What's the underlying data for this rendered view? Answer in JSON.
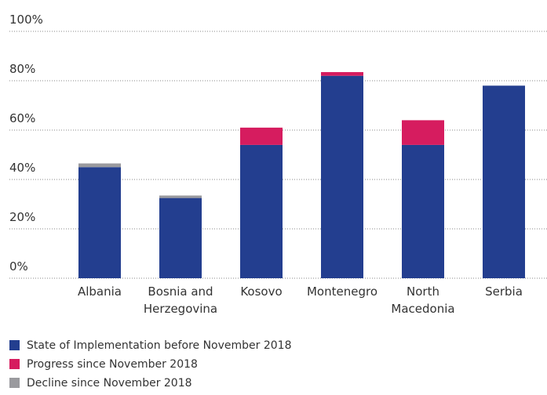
{
  "chart_data": {
    "type": "stacked_bar",
    "categories": [
      "Albania",
      "Bosnia and Herzegovina",
      "Kosovo",
      "Montenegro",
      "North Macedonia",
      "Serbia"
    ],
    "series": [
      {
        "name": "State of Implementation before November 2018",
        "color": "#233e8f",
        "values": [
          45,
          32.5,
          54,
          82,
          54,
          78
        ]
      },
      {
        "name": "Progress since November 2018",
        "color": "#d61c5f",
        "values": [
          0,
          0,
          7,
          1.5,
          10,
          0
        ]
      },
      {
        "name": "Decline since November 2018",
        "color": "#9a9a9e",
        "values": [
          1.5,
          1,
          0,
          0,
          0,
          0
        ]
      }
    ],
    "ylim": [
      0,
      100
    ],
    "yticks": [
      {
        "value": 0,
        "label": "0%"
      },
      {
        "value": 20,
        "label": "20%"
      },
      {
        "value": 40,
        "label": "40%"
      },
      {
        "value": 60,
        "label": "60%"
      },
      {
        "value": 80,
        "label": "80%"
      },
      {
        "value": 100,
        "label": "100%"
      }
    ],
    "grid": true
  }
}
